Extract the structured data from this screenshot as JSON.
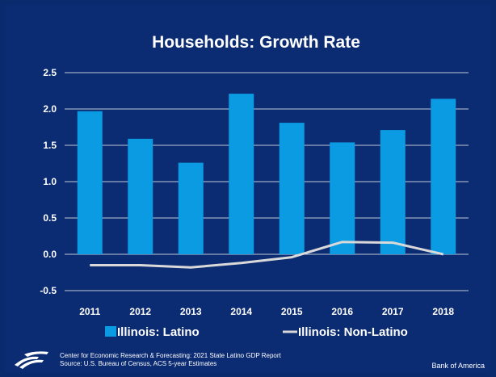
{
  "chart_data": {
    "type": "bar",
    "title": "Households: Growth Rate",
    "categories": [
      "2011",
      "2012",
      "2013",
      "2014",
      "2015",
      "2016",
      "2017",
      "2018"
    ],
    "series": [
      {
        "name": "Illinois: Latino",
        "type": "bar",
        "color": "#0a9be3",
        "values": [
          1.97,
          1.59,
          1.26,
          2.21,
          1.81,
          1.54,
          1.71,
          2.14
        ]
      },
      {
        "name": "Illinois: Non-Latino",
        "type": "line",
        "color": "#d9d9d9",
        "values": [
          -0.15,
          -0.15,
          -0.18,
          -0.12,
          -0.04,
          0.17,
          0.16,
          0.0
        ]
      }
    ],
    "ylim": [
      -0.5,
      2.5
    ],
    "yticks": [
      "-0.5",
      "0.0",
      "0.5",
      "1.0",
      "1.5",
      "2.0",
      "2.5"
    ],
    "grid": true,
    "legend_position": "bottom"
  },
  "footer": {
    "source_line1": "Center for Economic Research & Forecasting: 2021 State Latino GDP Report",
    "source_line2": "Source: U.S. Bureau of Census, ACS 5-year Estimates",
    "brand": "Bank of America"
  }
}
